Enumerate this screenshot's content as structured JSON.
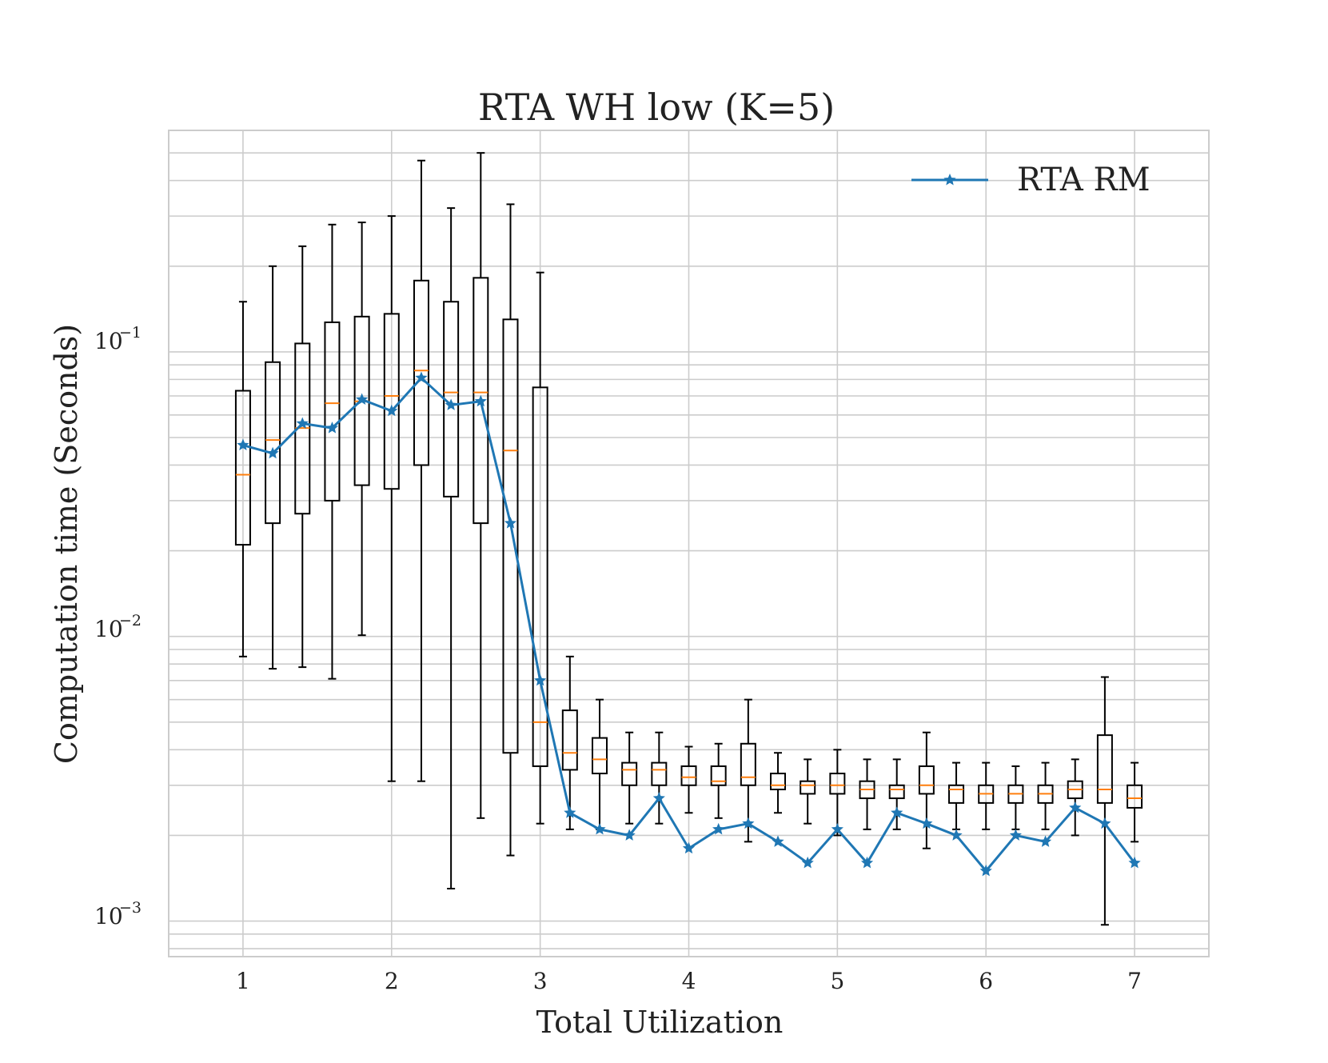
{
  "chart_data": {
    "type": "box",
    "title": "RTA WH low (K=5)",
    "xlabel": "Total Utilization",
    "ylabel": "Computation time (Seconds)",
    "yscale": "log",
    "ylim": [
      0.00075,
      0.6
    ],
    "xlim": [
      0.5,
      7.5
    ],
    "xticks": [
      1,
      2,
      3,
      4,
      5,
      6,
      7
    ],
    "xtick_labels": [
      "1",
      "2",
      "3",
      "4",
      "5",
      "6",
      "7"
    ],
    "ytick_labels": [
      {
        "base": "10",
        "exp": "−1",
        "value": 0.1
      },
      {
        "base": "10",
        "exp": "−2",
        "value": 0.01
      },
      {
        "base": "10",
        "exp": "−3",
        "value": 0.001
      }
    ],
    "grid": true,
    "legend": {
      "position": "top-right",
      "entries": [
        {
          "label": "RTA RM",
          "color": "#1f77b4",
          "marker": "star"
        }
      ]
    },
    "box_color": "#000000",
    "median_color": "#ff7f0e",
    "boxes": [
      {
        "x": 1.0,
        "whislo": 0.0085,
        "q1": 0.021,
        "med": 0.037,
        "q3": 0.073,
        "whishi": 0.15
      },
      {
        "x": 1.2,
        "whislo": 0.0077,
        "q1": 0.025,
        "med": 0.049,
        "q3": 0.092,
        "whishi": 0.2
      },
      {
        "x": 1.4,
        "whislo": 0.0078,
        "q1": 0.027,
        "med": 0.054,
        "q3": 0.107,
        "whishi": 0.235
      },
      {
        "x": 1.6,
        "whislo": 0.0071,
        "q1": 0.03,
        "med": 0.066,
        "q3": 0.127,
        "whishi": 0.28
      },
      {
        "x": 1.8,
        "whislo": 0.0101,
        "q1": 0.034,
        "med": 0.067,
        "q3": 0.133,
        "whishi": 0.285
      },
      {
        "x": 2.0,
        "whislo": 0.0031,
        "q1": 0.033,
        "med": 0.07,
        "q3": 0.136,
        "whishi": 0.3
      },
      {
        "x": 2.2,
        "whislo": 0.0031,
        "q1": 0.04,
        "med": 0.086,
        "q3": 0.178,
        "whishi": 0.47
      },
      {
        "x": 2.4,
        "whislo": 0.0013,
        "q1": 0.031,
        "med": 0.072,
        "q3": 0.15,
        "whishi": 0.32
      },
      {
        "x": 2.6,
        "whislo": 0.0023,
        "q1": 0.025,
        "med": 0.072,
        "q3": 0.182,
        "whishi": 0.5
      },
      {
        "x": 2.8,
        "whislo": 0.0017,
        "q1": 0.0039,
        "med": 0.045,
        "q3": 0.13,
        "whishi": 0.33
      },
      {
        "x": 3.0,
        "whislo": 0.0022,
        "q1": 0.0035,
        "med": 0.005,
        "q3": 0.075,
        "whishi": 0.19
      },
      {
        "x": 3.2,
        "whislo": 0.0021,
        "q1": 0.0034,
        "med": 0.0039,
        "q3": 0.0055,
        "whishi": 0.0085
      },
      {
        "x": 3.4,
        "whislo": 0.0021,
        "q1": 0.0033,
        "med": 0.0037,
        "q3": 0.0044,
        "whishi": 0.006
      },
      {
        "x": 3.6,
        "whislo": 0.0022,
        "q1": 0.003,
        "med": 0.0034,
        "q3": 0.0036,
        "whishi": 0.0046
      },
      {
        "x": 3.8,
        "whislo": 0.0022,
        "q1": 0.003,
        "med": 0.0034,
        "q3": 0.0036,
        "whishi": 0.0046
      },
      {
        "x": 4.0,
        "whislo": 0.0024,
        "q1": 0.003,
        "med": 0.0032,
        "q3": 0.0035,
        "whishi": 0.0041
      },
      {
        "x": 4.2,
        "whislo": 0.0023,
        "q1": 0.003,
        "med": 0.0031,
        "q3": 0.0035,
        "whishi": 0.0042
      },
      {
        "x": 4.4,
        "whislo": 0.0019,
        "q1": 0.003,
        "med": 0.0032,
        "q3": 0.0042,
        "whishi": 0.006
      },
      {
        "x": 4.6,
        "whislo": 0.0024,
        "q1": 0.0029,
        "med": 0.003,
        "q3": 0.0033,
        "whishi": 0.0039
      },
      {
        "x": 4.8,
        "whislo": 0.0022,
        "q1": 0.0028,
        "med": 0.003,
        "q3": 0.0031,
        "whishi": 0.0037
      },
      {
        "x": 5.0,
        "whislo": 0.002,
        "q1": 0.0028,
        "med": 0.003,
        "q3": 0.0033,
        "whishi": 0.004
      },
      {
        "x": 5.2,
        "whislo": 0.0021,
        "q1": 0.0027,
        "med": 0.0029,
        "q3": 0.0031,
        "whishi": 0.0037
      },
      {
        "x": 5.4,
        "whislo": 0.0021,
        "q1": 0.0027,
        "med": 0.0029,
        "q3": 0.003,
        "whishi": 0.0037
      },
      {
        "x": 5.6,
        "whislo": 0.0018,
        "q1": 0.0028,
        "med": 0.003,
        "q3": 0.0035,
        "whishi": 0.0046
      },
      {
        "x": 5.8,
        "whislo": 0.0021,
        "q1": 0.0026,
        "med": 0.0029,
        "q3": 0.003,
        "whishi": 0.0036
      },
      {
        "x": 6.0,
        "whislo": 0.0021,
        "q1": 0.0026,
        "med": 0.0028,
        "q3": 0.003,
        "whishi": 0.0036
      },
      {
        "x": 6.2,
        "whislo": 0.0021,
        "q1": 0.0026,
        "med": 0.0028,
        "q3": 0.003,
        "whishi": 0.0035
      },
      {
        "x": 6.4,
        "whislo": 0.0021,
        "q1": 0.0026,
        "med": 0.0028,
        "q3": 0.003,
        "whishi": 0.0036
      },
      {
        "x": 6.6,
        "whislo": 0.002,
        "q1": 0.0027,
        "med": 0.0029,
        "q3": 0.0031,
        "whishi": 0.0037
      },
      {
        "x": 6.8,
        "whislo": 0.00097,
        "q1": 0.0026,
        "med": 0.0029,
        "q3": 0.0045,
        "whishi": 0.0072
      },
      {
        "x": 7.0,
        "whislo": 0.0019,
        "q1": 0.0025,
        "med": 0.0027,
        "q3": 0.003,
        "whishi": 0.0036
      }
    ],
    "series": [
      {
        "name": "RTA RM",
        "color": "#1f77b4",
        "x": [
          1.0,
          1.2,
          1.4,
          1.6,
          1.8,
          2.0,
          2.2,
          2.4,
          2.6,
          2.8,
          3.0,
          3.2,
          3.4,
          3.6,
          3.8,
          4.0,
          4.2,
          4.4,
          4.6,
          4.8,
          5.0,
          5.2,
          5.4,
          5.6,
          5.8,
          6.0,
          6.2,
          6.4,
          6.6,
          6.8,
          7.0
        ],
        "values": [
          0.047,
          0.044,
          0.056,
          0.054,
          0.068,
          0.062,
          0.081,
          0.065,
          0.067,
          0.025,
          0.007,
          0.0024,
          0.0021,
          0.002,
          0.0027,
          0.0018,
          0.0021,
          0.0022,
          0.0019,
          0.0016,
          0.0021,
          0.0016,
          0.0024,
          0.0022,
          0.002,
          0.0015,
          0.002,
          0.0019,
          0.0025,
          0.0022,
          0.0016
        ]
      }
    ]
  }
}
